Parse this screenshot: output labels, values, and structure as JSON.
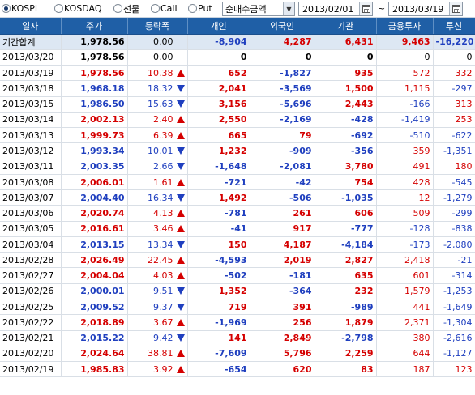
{
  "toolbar": {
    "markets": [
      {
        "label": "KOSPI",
        "checked": true
      },
      {
        "label": "KOSDAQ",
        "checked": false
      },
      {
        "label": "선물",
        "checked": false
      },
      {
        "label": "Call",
        "checked": false
      },
      {
        "label": "Put",
        "checked": false
      }
    ],
    "mode_select": "순매수금액",
    "date_from": "2013/02/01",
    "date_separator": "~",
    "date_to": "2013/03/19"
  },
  "table": {
    "columns": [
      "일자",
      "주가",
      "등락폭",
      "개인",
      "외국인",
      "기관",
      "금융투자",
      "투신"
    ],
    "total_row": {
      "date": "기간합계",
      "price": "1,978.56",
      "change": "0.00",
      "dir": "none",
      "individual": "-8,904",
      "foreign": "4,287",
      "institution": "6,431",
      "fin_invest": "9,463",
      "trust": "-16,220"
    },
    "rows": [
      {
        "date": "2013/03/20",
        "price": "1,978.56",
        "change": "0.00",
        "dir": "none",
        "individual": "0",
        "foreign": "0",
        "institution": "0",
        "fin_invest": "0",
        "trust": "0"
      },
      {
        "date": "2013/03/19",
        "price": "1,978.56",
        "change": "10.38",
        "dir": "up",
        "individual": "652",
        "foreign": "-1,827",
        "institution": "935",
        "fin_invest": "572",
        "trust": "332"
      },
      {
        "date": "2013/03/18",
        "price": "1,968.18",
        "change": "18.32",
        "dir": "down",
        "individual": "2,041",
        "foreign": "-3,569",
        "institution": "1,500",
        "fin_invest": "1,115",
        "trust": "-297"
      },
      {
        "date": "2013/03/15",
        "price": "1,986.50",
        "change": "15.63",
        "dir": "down",
        "individual": "3,156",
        "foreign": "-5,696",
        "institution": "2,443",
        "fin_invest": "-166",
        "trust": "313"
      },
      {
        "date": "2013/03/14",
        "price": "2,002.13",
        "change": "2.40",
        "dir": "up",
        "individual": "2,550",
        "foreign": "-2,169",
        "institution": "-428",
        "fin_invest": "-1,419",
        "trust": "253"
      },
      {
        "date": "2013/03/13",
        "price": "1,999.73",
        "change": "6.39",
        "dir": "up",
        "individual": "665",
        "foreign": "79",
        "institution": "-692",
        "fin_invest": "-510",
        "trust": "-622"
      },
      {
        "date": "2013/03/12",
        "price": "1,993.34",
        "change": "10.01",
        "dir": "down",
        "individual": "1,232",
        "foreign": "-909",
        "institution": "-356",
        "fin_invest": "359",
        "trust": "-1,351"
      },
      {
        "date": "2013/03/11",
        "price": "2,003.35",
        "change": "2.66",
        "dir": "down",
        "individual": "-1,648",
        "foreign": "-2,081",
        "institution": "3,780",
        "fin_invest": "491",
        "trust": "180"
      },
      {
        "date": "2013/03/08",
        "price": "2,006.01",
        "change": "1.61",
        "dir": "up",
        "individual": "-721",
        "foreign": "-42",
        "institution": "754",
        "fin_invest": "428",
        "trust": "-545"
      },
      {
        "date": "2013/03/07",
        "price": "2,004.40",
        "change": "16.34",
        "dir": "down",
        "individual": "1,492",
        "foreign": "-506",
        "institution": "-1,035",
        "fin_invest": "12",
        "trust": "-1,279"
      },
      {
        "date": "2013/03/06",
        "price": "2,020.74",
        "change": "4.13",
        "dir": "up",
        "individual": "-781",
        "foreign": "261",
        "institution": "606",
        "fin_invest": "509",
        "trust": "-299"
      },
      {
        "date": "2013/03/05",
        "price": "2,016.61",
        "change": "3.46",
        "dir": "up",
        "individual": "-41",
        "foreign": "917",
        "institution": "-777",
        "fin_invest": "-128",
        "trust": "-838"
      },
      {
        "date": "2013/03/04",
        "price": "2,013.15",
        "change": "13.34",
        "dir": "down",
        "individual": "150",
        "foreign": "4,187",
        "institution": "-4,184",
        "fin_invest": "-173",
        "trust": "-2,080"
      },
      {
        "date": "2013/02/28",
        "price": "2,026.49",
        "change": "22.45",
        "dir": "up",
        "individual": "-4,593",
        "foreign": "2,019",
        "institution": "2,827",
        "fin_invest": "2,418",
        "trust": "-21"
      },
      {
        "date": "2013/02/27",
        "price": "2,004.04",
        "change": "4.03",
        "dir": "up",
        "individual": "-502",
        "foreign": "-181",
        "institution": "635",
        "fin_invest": "601",
        "trust": "-314"
      },
      {
        "date": "2013/02/26",
        "price": "2,000.01",
        "change": "9.51",
        "dir": "down",
        "individual": "1,352",
        "foreign": "-364",
        "institution": "232",
        "fin_invest": "1,579",
        "trust": "-1,253"
      },
      {
        "date": "2013/02/25",
        "price": "2,009.52",
        "change": "9.37",
        "dir": "down",
        "individual": "719",
        "foreign": "391",
        "institution": "-989",
        "fin_invest": "441",
        "trust": "-1,649"
      },
      {
        "date": "2013/02/22",
        "price": "2,018.89",
        "change": "3.67",
        "dir": "up",
        "individual": "-1,969",
        "foreign": "256",
        "institution": "1,879",
        "fin_invest": "2,371",
        "trust": "-1,304"
      },
      {
        "date": "2013/02/21",
        "price": "2,015.22",
        "change": "9.42",
        "dir": "down",
        "individual": "141",
        "foreign": "2,849",
        "institution": "-2,798",
        "fin_invest": "380",
        "trust": "-2,616"
      },
      {
        "date": "2013/02/20",
        "price": "2,024.64",
        "change": "38.81",
        "dir": "up",
        "individual": "-7,609",
        "foreign": "5,796",
        "institution": "2,259",
        "fin_invest": "644",
        "trust": "-1,127"
      },
      {
        "date": "2013/02/19",
        "price": "1,985.83",
        "change": "3.92",
        "dir": "up",
        "individual": "-654",
        "foreign": "620",
        "institution": "83",
        "fin_invest": "187",
        "trust": "123"
      }
    ]
  },
  "colors": {
    "up": "#d50000",
    "down": "#1f3fbf",
    "header_bg": "#1f5fa6",
    "total_bg": "#dde7f3"
  }
}
